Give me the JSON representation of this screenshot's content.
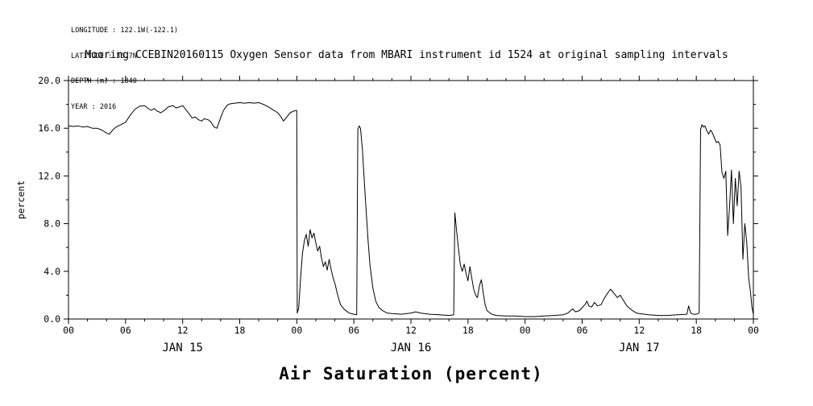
{
  "header": {
    "longitude": "LONGITUDE : 122.1W(-122.1)",
    "latitude": "LATITUDE : 36.7N",
    "depth": "DEPTH (m) : 1840",
    "year": "YEAR : 2016"
  },
  "title": "Mooring CCEBIN20160115 Oxygen Sensor data from MBARI instrument id 1524 at original sampling intervals",
  "chart_data": {
    "type": "line",
    "title": "Mooring CCEBIN20160115 Oxygen Sensor data from MBARI instrument id 1524 at original sampling intervals",
    "xlabel": "Air Saturation (percent)",
    "ylabel": "percent",
    "ylim": [
      0,
      20
    ],
    "xlim_hours": [
      0,
      72
    ],
    "grid": false,
    "legend": "none",
    "line_color": "#000000",
    "background_color": "#ffffff",
    "x_major_step": 6,
    "x_minor_step": 2,
    "y_major_step": 4,
    "y_minor_step": 2,
    "y_ticks": [
      {
        "v": 0,
        "label": "0.0"
      },
      {
        "v": 4,
        "label": "4.0"
      },
      {
        "v": 8,
        "label": "8.0"
      },
      {
        "v": 12,
        "label": "12.0"
      },
      {
        "v": 16,
        "label": "16.0"
      },
      {
        "v": 20,
        "label": "20.0"
      }
    ],
    "x_ticks": [
      {
        "h": 0,
        "label": "00"
      },
      {
        "h": 6,
        "label": "06"
      },
      {
        "h": 12,
        "label": "12"
      },
      {
        "h": 18,
        "label": "18"
      },
      {
        "h": 24,
        "label": "00"
      },
      {
        "h": 30,
        "label": "06"
      },
      {
        "h": 36,
        "label": "12"
      },
      {
        "h": 42,
        "label": "18"
      },
      {
        "h": 48,
        "label": "00"
      },
      {
        "h": 54,
        "label": "06"
      },
      {
        "h": 60,
        "label": "12"
      },
      {
        "h": 66,
        "label": "18"
      },
      {
        "h": 72,
        "label": "00"
      }
    ],
    "date_labels": [
      {
        "h": 12,
        "label": "JAN 15"
      },
      {
        "h": 36,
        "label": "JAN 16"
      },
      {
        "h": 60,
        "label": "JAN 17"
      }
    ],
    "points": [
      [
        0,
        16.2
      ],
      [
        0.5,
        16.15
      ],
      [
        1,
        16.2
      ],
      [
        1.5,
        16.1
      ],
      [
        2,
        16.15
      ],
      [
        2.5,
        16.0
      ],
      [
        3,
        16.0
      ],
      [
        3.5,
        15.85
      ],
      [
        4,
        15.6
      ],
      [
        4.3,
        15.5
      ],
      [
        4.7,
        15.9
      ],
      [
        5,
        16.1
      ],
      [
        5.5,
        16.3
      ],
      [
        6,
        16.5
      ],
      [
        6.5,
        17.1
      ],
      [
        7,
        17.6
      ],
      [
        7.5,
        17.85
      ],
      [
        8,
        17.9
      ],
      [
        8.3,
        17.7
      ],
      [
        8.7,
        17.5
      ],
      [
        9,
        17.65
      ],
      [
        9.3,
        17.45
      ],
      [
        9.7,
        17.3
      ],
      [
        10,
        17.45
      ],
      [
        10.5,
        17.8
      ],
      [
        11,
        17.9
      ],
      [
        11.3,
        17.7
      ],
      [
        11.7,
        17.8
      ],
      [
        12,
        17.9
      ],
      [
        12.3,
        17.6
      ],
      [
        12.7,
        17.2
      ],
      [
        13,
        16.85
      ],
      [
        13.3,
        16.95
      ],
      [
        13.7,
        16.7
      ],
      [
        14,
        16.6
      ],
      [
        14.3,
        16.8
      ],
      [
        14.7,
        16.7
      ],
      [
        15,
        16.5
      ],
      [
        15.3,
        16.1
      ],
      [
        15.6,
        16.0
      ],
      [
        16,
        16.9
      ],
      [
        16.3,
        17.5
      ],
      [
        16.7,
        17.95
      ],
      [
        17,
        18.05
      ],
      [
        17.5,
        18.1
      ],
      [
        18,
        18.15
      ],
      [
        18.5,
        18.1
      ],
      [
        19,
        18.15
      ],
      [
        19.5,
        18.1
      ],
      [
        20,
        18.15
      ],
      [
        20.5,
        18.0
      ],
      [
        21,
        17.8
      ],
      [
        21.5,
        17.55
      ],
      [
        22,
        17.3
      ],
      [
        22.3,
        17.0
      ],
      [
        22.6,
        16.6
      ],
      [
        23,
        17.0
      ],
      [
        23.3,
        17.3
      ],
      [
        23.7,
        17.45
      ],
      [
        24,
        17.5
      ],
      [
        24.05,
        0.5
      ],
      [
        24.2,
        0.9
      ],
      [
        24.4,
        3.5
      ],
      [
        24.6,
        5.5
      ],
      [
        24.8,
        6.6
      ],
      [
        25,
        7.1
      ],
      [
        25.2,
        6.1
      ],
      [
        25.4,
        7.5
      ],
      [
        25.6,
        6.8
      ],
      [
        25.8,
        7.2
      ],
      [
        26,
        6.4
      ],
      [
        26.2,
        5.7
      ],
      [
        26.4,
        6.1
      ],
      [
        26.6,
        5.1
      ],
      [
        26.8,
        4.4
      ],
      [
        27,
        4.8
      ],
      [
        27.2,
        4.1
      ],
      [
        27.4,
        5.0
      ],
      [
        27.6,
        4.2
      ],
      [
        27.8,
        3.5
      ],
      [
        28,
        3.0
      ],
      [
        28.3,
        2.0
      ],
      [
        28.6,
        1.2
      ],
      [
        29,
        0.8
      ],
      [
        29.5,
        0.5
      ],
      [
        30,
        0.4
      ],
      [
        30.3,
        0.35
      ],
      [
        30.42,
        15.9
      ],
      [
        30.55,
        16.2
      ],
      [
        30.7,
        16.0
      ],
      [
        30.9,
        14.2
      ],
      [
        31.1,
        11.5
      ],
      [
        31.3,
        9.0
      ],
      [
        31.5,
        6.5
      ],
      [
        31.7,
        4.5
      ],
      [
        32,
        2.6
      ],
      [
        32.3,
        1.5
      ],
      [
        32.6,
        1.0
      ],
      [
        33,
        0.7
      ],
      [
        33.5,
        0.5
      ],
      [
        34,
        0.45
      ],
      [
        35,
        0.4
      ],
      [
        36,
        0.5
      ],
      [
        36.5,
        0.6
      ],
      [
        37,
        0.5
      ],
      [
        38,
        0.4
      ],
      [
        39,
        0.35
      ],
      [
        40,
        0.3
      ],
      [
        40.5,
        0.35
      ],
      [
        40.62,
        8.9
      ],
      [
        40.8,
        7.4
      ],
      [
        41,
        5.9
      ],
      [
        41.2,
        4.5
      ],
      [
        41.4,
        4.0
      ],
      [
        41.6,
        4.6
      ],
      [
        41.8,
        3.8
      ],
      [
        42,
        3.2
      ],
      [
        42.2,
        4.4
      ],
      [
        42.4,
        3.4
      ],
      [
        42.6,
        2.5
      ],
      [
        42.8,
        2.0
      ],
      [
        43,
        1.8
      ],
      [
        43.2,
        2.8
      ],
      [
        43.4,
        3.3
      ],
      [
        43.6,
        2.2
      ],
      [
        43.8,
        1.2
      ],
      [
        44,
        0.7
      ],
      [
        44.5,
        0.4
      ],
      [
        45,
        0.3
      ],
      [
        46,
        0.25
      ],
      [
        47,
        0.25
      ],
      [
        48,
        0.2
      ],
      [
        49,
        0.2
      ],
      [
        50,
        0.25
      ],
      [
        51,
        0.3
      ],
      [
        52,
        0.35
      ],
      [
        52.5,
        0.5
      ],
      [
        53,
        0.85
      ],
      [
        53.3,
        0.6
      ],
      [
        53.7,
        0.7
      ],
      [
        54,
        0.95
      ],
      [
        54.3,
        1.2
      ],
      [
        54.5,
        1.5
      ],
      [
        54.7,
        1.1
      ],
      [
        55,
        1.0
      ],
      [
        55.3,
        1.4
      ],
      [
        55.6,
        1.1
      ],
      [
        56,
        1.2
      ],
      [
        56.3,
        1.7
      ],
      [
        56.7,
        2.2
      ],
      [
        57,
        2.5
      ],
      [
        57.3,
        2.2
      ],
      [
        57.7,
        1.8
      ],
      [
        58,
        2.0
      ],
      [
        58.3,
        1.6
      ],
      [
        58.7,
        1.1
      ],
      [
        59,
        0.9
      ],
      [
        59.3,
        0.7
      ],
      [
        59.7,
        0.5
      ],
      [
        60,
        0.45
      ],
      [
        61,
        0.35
      ],
      [
        62,
        0.3
      ],
      [
        63,
        0.3
      ],
      [
        64,
        0.35
      ],
      [
        65,
        0.4
      ],
      [
        65.2,
        1.1
      ],
      [
        65.4,
        0.5
      ],
      [
        65.7,
        0.4
      ],
      [
        66,
        0.4
      ],
      [
        66.3,
        0.5
      ],
      [
        66.45,
        15.9
      ],
      [
        66.6,
        16.3
      ],
      [
        66.75,
        16.1
      ],
      [
        66.9,
        16.2
      ],
      [
        67.1,
        15.8
      ],
      [
        67.3,
        15.5
      ],
      [
        67.5,
        15.85
      ],
      [
        67.7,
        15.6
      ],
      [
        67.9,
        15.2
      ],
      [
        68.1,
        14.8
      ],
      [
        68.3,
        14.9
      ],
      [
        68.5,
        14.6
      ],
      [
        68.7,
        12.3
      ],
      [
        68.9,
        11.8
      ],
      [
        69.1,
        12.4
      ],
      [
        69.3,
        7.0
      ],
      [
        69.5,
        9.5
      ],
      [
        69.7,
        12.5
      ],
      [
        69.9,
        8.0
      ],
      [
        70.1,
        11.8
      ],
      [
        70.3,
        9.5
      ],
      [
        70.5,
        12.4
      ],
      [
        70.7,
        11.0
      ],
      [
        70.9,
        5.0
      ],
      [
        71.1,
        8.0
      ],
      [
        71.3,
        6.5
      ],
      [
        71.5,
        3.5
      ],
      [
        71.7,
        2.2
      ],
      [
        71.85,
        1.0
      ],
      [
        72,
        0.4
      ]
    ]
  }
}
